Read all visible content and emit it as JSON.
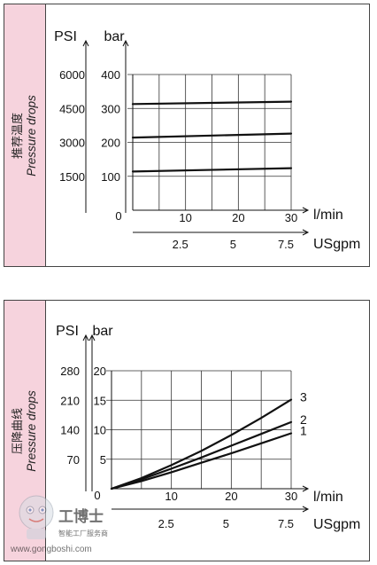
{
  "panels": [
    {
      "label_cn": "推荐温度",
      "label_en": "Pressure drops"
    },
    {
      "label_cn": "压降曲线",
      "label_en": "Pressure drops"
    }
  ],
  "watermark": {
    "brand": "工博士",
    "slogan": "智能工厂服务商",
    "url": "www.gongboshi.com"
  },
  "colors": {
    "panel_bg": "#ffffff",
    "side_bg": "#f6d3dd",
    "line": "#111111",
    "grid": "#333333"
  },
  "chart_data": [
    {
      "type": "line",
      "title": "",
      "xlabel": "l/min",
      "x2label": "USgpm",
      "ylabel_left": "PSI",
      "ylabel_right": "bar",
      "xlim": [
        0,
        30
      ],
      "ylim": [
        0,
        400
      ],
      "x_ticks": [
        10,
        20,
        30
      ],
      "x2_ticks": [
        "2.5",
        "5",
        "7.5"
      ],
      "y_ticks_bar": [
        100,
        200,
        300,
        400
      ],
      "y_ticks_psi": [
        "1500",
        "3000",
        "4500",
        "6000"
      ],
      "origin_label": "0",
      "grid": true,
      "series": [
        {
          "x": [
            0,
            30
          ],
          "values": [
            114,
            124
          ]
        },
        {
          "x": [
            0,
            30
          ],
          "values": [
            214,
            226
          ]
        },
        {
          "x": [
            0,
            30
          ],
          "values": [
            313,
            320
          ]
        }
      ]
    },
    {
      "type": "line",
      "title": "",
      "xlabel": "l/min",
      "x2label": "USgpm",
      "ylabel_left": "PSI",
      "ylabel_right": "bar",
      "xlim": [
        0,
        30
      ],
      "ylim": [
        0,
        20
      ],
      "x_ticks": [
        10,
        20,
        30
      ],
      "x2_ticks": [
        "2.5",
        "5",
        "7.5"
      ],
      "y_ticks_bar": [
        5,
        10,
        15,
        20
      ],
      "y_ticks_psi": [
        "70",
        "140",
        "210",
        "280"
      ],
      "origin_label": "0",
      "grid": true,
      "series": [
        {
          "name": "1",
          "x": [
            0,
            5,
            10,
            15,
            20,
            25,
            30
          ],
          "values": [
            0,
            1.3,
            2.8,
            4.4,
            6.0,
            7.7,
            9.4
          ]
        },
        {
          "name": "2",
          "x": [
            0,
            5,
            10,
            15,
            20,
            25,
            30
          ],
          "values": [
            0,
            1.6,
            3.4,
            5.3,
            7.3,
            9.3,
            11.3
          ]
        },
        {
          "name": "3",
          "x": [
            0,
            5,
            10,
            15,
            20,
            25,
            30
          ],
          "values": [
            0,
            1.8,
            4.0,
            6.4,
            9.1,
            12.0,
            15.1
          ]
        }
      ]
    }
  ]
}
